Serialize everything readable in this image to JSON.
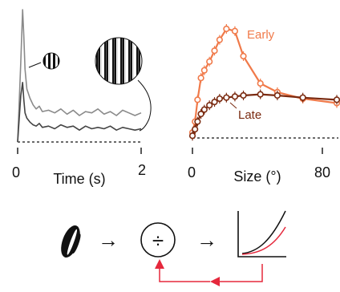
{
  "chart_data": [
    {
      "type": "line",
      "xlabel": "Time (s)",
      "ylabel": "",
      "xlim": [
        0,
        2
      ],
      "x_ticks": [
        "0",
        "2"
      ],
      "grid": false,
      "legend": "none",
      "insets": [
        "small-grating-icon",
        "large-grating-icon"
      ],
      "series": [
        {
          "color": "#8a8a8a",
          "x": [
            0,
            0.05,
            0.08,
            0.1,
            0.12,
            0.15,
            0.2,
            0.25,
            0.3,
            0.35,
            0.4,
            0.5,
            0.6,
            0.7,
            0.8,
            0.9,
            1.0,
            1.1,
            1.2,
            1.3,
            1.4,
            1.5,
            1.6,
            1.7,
            1.8,
            1.9,
            2.0
          ],
          "y": [
            0.0,
            0.6,
            1.0,
            0.8,
            0.55,
            0.4,
            0.33,
            0.28,
            0.25,
            0.27,
            0.23,
            0.24,
            0.22,
            0.25,
            0.21,
            0.24,
            0.2,
            0.23,
            0.22,
            0.25,
            0.21,
            0.23,
            0.2,
            0.24,
            0.22,
            0.2,
            0.22
          ]
        },
        {
          "color": "#444444",
          "x": [
            0,
            0.05,
            0.08,
            0.1,
            0.12,
            0.15,
            0.2,
            0.25,
            0.3,
            0.35,
            0.4,
            0.5,
            0.6,
            0.7,
            0.8,
            0.9,
            1.0,
            1.1,
            1.2,
            1.3,
            1.4,
            1.5,
            1.6,
            1.7,
            1.8,
            1.9,
            2.0
          ],
          "y": [
            0.0,
            0.35,
            0.45,
            0.32,
            0.22,
            0.18,
            0.15,
            0.13,
            0.12,
            0.14,
            0.11,
            0.12,
            0.1,
            0.13,
            0.11,
            0.12,
            0.09,
            0.12,
            0.1,
            0.11,
            0.1,
            0.12,
            0.09,
            0.11,
            0.1,
            0.09,
            0.1
          ]
        }
      ]
    },
    {
      "type": "line",
      "xlabel": "Size (°)",
      "ylabel": "",
      "xlim": [
        0,
        85
      ],
      "x_ticks": [
        "0",
        "80"
      ],
      "grid": false,
      "legend": "inline",
      "series": [
        {
          "name": "Early",
          "color": "#f07a4a",
          "x": [
            0,
            1.5,
            3,
            5,
            7,
            10,
            13,
            16,
            20,
            25,
            30,
            40,
            50,
            65,
            85
          ],
          "y": [
            0.05,
            0.15,
            0.35,
            0.55,
            0.62,
            0.7,
            0.8,
            0.9,
            1.0,
            0.98,
            0.75,
            0.5,
            0.42,
            0.36,
            0.32
          ]
        },
        {
          "name": "Late",
          "color": "#7a2a10",
          "x": [
            0,
            1.5,
            3,
            5,
            7,
            10,
            13,
            16,
            20,
            25,
            30,
            40,
            50,
            65,
            85
          ],
          "y": [
            0.02,
            0.08,
            0.15,
            0.22,
            0.26,
            0.3,
            0.33,
            0.36,
            0.37,
            0.38,
            0.39,
            0.4,
            0.39,
            0.37,
            0.35
          ]
        }
      ]
    }
  ],
  "diagram": {
    "arrow_glyph": "→",
    "division_glyph": "÷",
    "gain_curve_colors": [
      "#111111",
      "#e5283c"
    ],
    "feedback_color": "#e5283c"
  }
}
